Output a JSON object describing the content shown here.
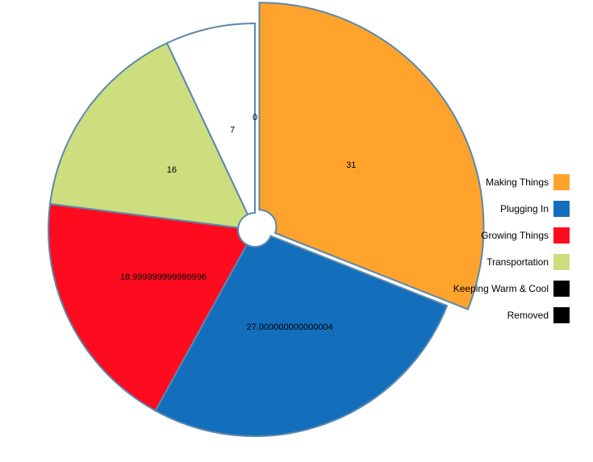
{
  "chart_data": {
    "type": "pie",
    "title": "",
    "slices": [
      {
        "name": "Making Things",
        "value": 31,
        "label": "31",
        "color": "#FFA32C",
        "exploded": true
      },
      {
        "name": "Plugging In",
        "value": 27.000000000000004,
        "label": "27.000000000000004",
        "color": "#136EBB"
      },
      {
        "name": "Growing Things",
        "value": 18.999999999999996,
        "label": "18.999999999999996",
        "color": "#FF0B20"
      },
      {
        "name": "Transportation",
        "value": 16,
        "label": "16",
        "color": "#CCDE7E"
      },
      {
        "name": "Keeping Warm & Cool",
        "value": 7,
        "label": "7",
        "color": "#FFFFFF"
      },
      {
        "name": "Removed",
        "value": 0,
        "label": "0",
        "color": "#000000"
      }
    ],
    "legend": {
      "position": "right",
      "items": [
        {
          "label": "Making Things",
          "color": "#FFA32C"
        },
        {
          "label": "Plugging In",
          "color": "#136EBB"
        },
        {
          "label": "Growing Things",
          "color": "#FF0B20"
        },
        {
          "label": "Transportation",
          "color": "#CCDE7E"
        },
        {
          "label": "Keeping Warm & Cool",
          "color": "#000000"
        },
        {
          "label": "Removed",
          "color": "#000000"
        }
      ]
    },
    "stroke_color": "#5B88AE"
  }
}
